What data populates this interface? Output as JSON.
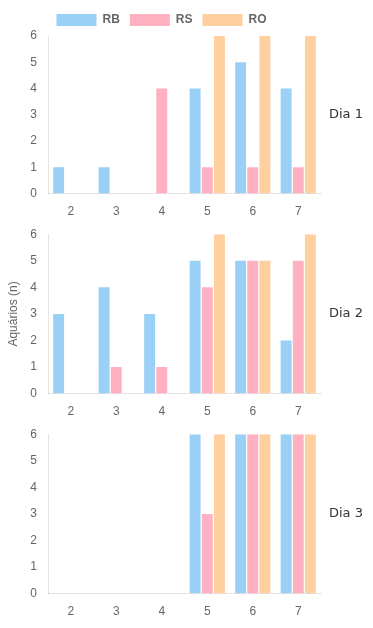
{
  "chart_data": [
    {
      "type": "bar",
      "categories": [
        "2",
        "3",
        "4",
        "5",
        "6",
        "7"
      ],
      "series": [
        {
          "name": "RB",
          "values": [
            1,
            1,
            0,
            4,
            5,
            4
          ]
        },
        {
          "name": "RS",
          "values": [
            0,
            0,
            4,
            1,
            1,
            1
          ]
        },
        {
          "name": "RO",
          "values": [
            0,
            0,
            0,
            6,
            6,
            6
          ]
        }
      ],
      "annotations": [
        "Dia 1"
      ],
      "ylim": [
        0,
        6
      ],
      "yticks": [
        0,
        1,
        2,
        3,
        4,
        5,
        6
      ],
      "grid": false,
      "legend": "top"
    },
    {
      "type": "bar",
      "categories": [
        "2",
        "3",
        "4",
        "5",
        "6",
        "7"
      ],
      "series": [
        {
          "name": "RB",
          "values": [
            3,
            4,
            3,
            5,
            5,
            2
          ]
        },
        {
          "name": "RS",
          "values": [
            0,
            1,
            1,
            4,
            5,
            5
          ]
        },
        {
          "name": "RO",
          "values": [
            0,
            0,
            0,
            6,
            5,
            6
          ]
        }
      ],
      "annotations": [
        "Dia 2"
      ],
      "ylabel": "Aquários (n)",
      "ylim": [
        0,
        6
      ],
      "yticks": [
        0,
        1,
        2,
        3,
        4,
        5,
        6
      ],
      "grid": false
    },
    {
      "type": "bar",
      "categories": [
        "2",
        "3",
        "4",
        "5",
        "6",
        "7"
      ],
      "series": [
        {
          "name": "RB",
          "values": [
            0,
            0,
            0,
            6,
            6,
            6
          ]
        },
        {
          "name": "RS",
          "values": [
            0,
            0,
            0,
            3,
            6,
            6
          ]
        },
        {
          "name": "RO",
          "values": [
            0,
            0,
            0,
            6,
            6,
            6
          ]
        }
      ],
      "annotations": [
        "Dia 3"
      ],
      "ylim": [
        0,
        6
      ],
      "yticks": [
        0,
        1,
        2,
        3,
        4,
        5,
        6
      ],
      "grid": false
    }
  ]
}
